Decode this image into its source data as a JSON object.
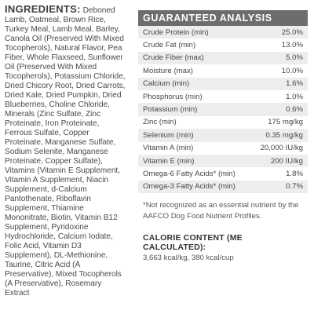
{
  "ingredients": {
    "heading": "INGREDIENTS:",
    "text": "Deboned Lamb, Oatmeal, Brown Rice, Turkey Meal, Lamb Meal, Barley, Canola Oil (Preserved With Mixed Tocopherols), Natural Flavor, Pea Fiber, Whole Flaxseed, Sunflower Oil (Preserved With Mixed Tocopherols), Potassium Chloride, Dried Chicory Root, Dried Carrots, Dried Kale, Dried Pumpkin, Dried Blueberries, Choline Chloride, Minerals (Zinc Sulfate, Zinc Proteinate, Iron Proteinate, Ferrous Sulfate, Copper Proteinate, Manganese Sulfate, Sodium Selenite, Manganese Proteinate, Copper Sulfate), Vitamins (Vitamin E Supplement, Vitamin A Supplement, Niacin Supplement, d-Calcium Pantothenate, Riboflavin Supplement, Thiamine Mononitrate, Biotin, Vitamin B12 Supplement, Pyridoxine Hydrochloride, Calcium Iodate, Folic Acid, Vitamin D3 Supplement), DL-Methionine, Taurine, Citric Acid (A Preservative), Mixed Tocopherols (A Preservative), Rosemary Extract"
  },
  "guaranteed_analysis": {
    "title": "GUARANTEED ANALYSIS",
    "rows": [
      {
        "label": "Crude Protein (min)",
        "value": "25.0%"
      },
      {
        "label": "Crude Fat (min)",
        "value": "13.0%"
      },
      {
        "label": "Crude Fiber (max)",
        "value": "5.0%"
      },
      {
        "label": "Moisture (max)",
        "value": "10.0%"
      },
      {
        "label": "Calcium (min)",
        "value": "1.6%"
      },
      {
        "label": "Phosphorus (min)",
        "value": "1.0%"
      },
      {
        "label": "Potassium (min)",
        "value": "0.6%"
      },
      {
        "label": "Zinc (min)",
        "value": "175 mg/kg"
      },
      {
        "label": "Selenium (min)",
        "value": "0.35 mg/kg"
      },
      {
        "label": "Vitamin A (min)",
        "value": "20,000 IU/kg"
      },
      {
        "label": "Vitamin E (min)",
        "value": "200 IU/kg"
      },
      {
        "label": "Omega-6 Fatty Acids* (min)",
        "value": "1.8%"
      },
      {
        "label": "Omega-3 Fatty Acids* (min)",
        "value": "0.7%"
      }
    ],
    "footnote": "*Not recognized as an essential nutrient by the AAFCO Dog Food Nutrient Profiles."
  },
  "calorie": {
    "title": "CALORIE CONTENT (ME CALCULATED):",
    "value": "3,663 kcal/kg, 380 kcal/cup"
  },
  "colors": {
    "header_bg": "#6d6d6d",
    "row_shade": "#ededed",
    "text": "#4a4a4a"
  }
}
